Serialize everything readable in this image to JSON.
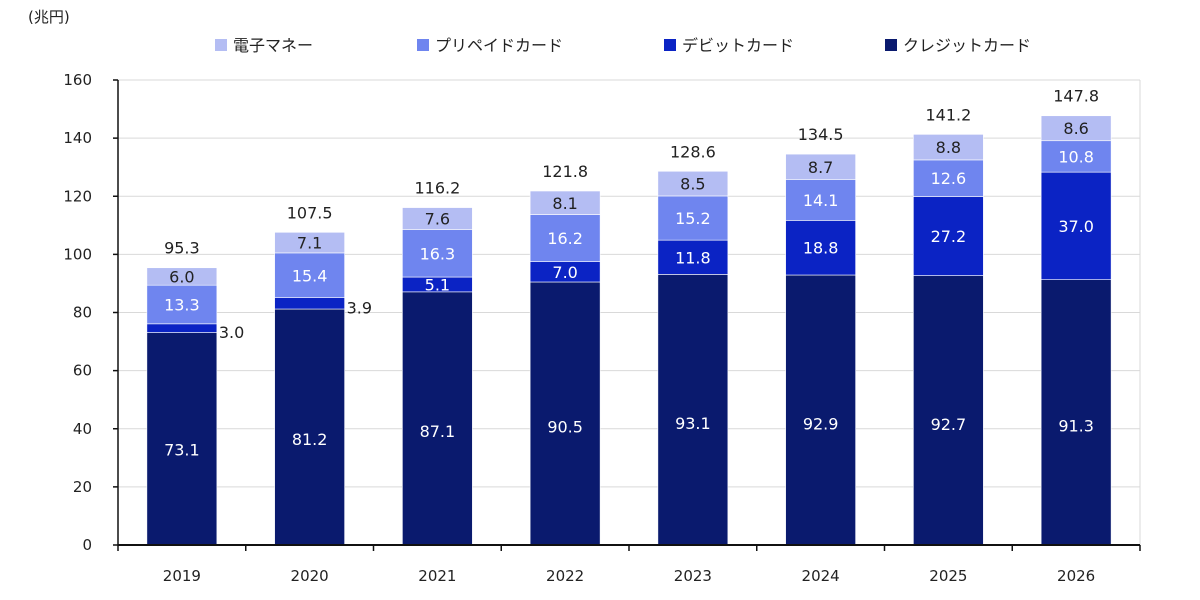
{
  "chart_data": {
    "type": "bar",
    "stacked": true,
    "unit_label": "(兆円)",
    "categories": [
      "2019",
      "2020",
      "2021",
      "2022",
      "2023",
      "2024",
      "2025",
      "2026"
    ],
    "series": [
      {
        "name": "クレジットカード",
        "color": "#0a1a6e",
        "label_color": "#ffffff",
        "values": [
          73.1,
          81.2,
          87.1,
          90.5,
          93.1,
          92.9,
          92.7,
          91.3
        ]
      },
      {
        "name": "デビットカード",
        "color": "#0b23c4",
        "label_color": "#ffffff",
        "values": [
          3.0,
          3.9,
          5.1,
          7.0,
          11.8,
          18.8,
          27.2,
          37.0
        ]
      },
      {
        "name": "プリペイドカード",
        "color": "#6f85ef",
        "label_color": "#ffffff",
        "values": [
          13.3,
          15.4,
          16.3,
          16.2,
          15.2,
          14.1,
          12.6,
          10.8
        ]
      },
      {
        "name": "電子マネー",
        "color": "#b4bdf3",
        "label_color": "#222222",
        "values": [
          6.0,
          7.1,
          7.6,
          8.1,
          8.5,
          8.7,
          8.8,
          8.6
        ]
      }
    ],
    "value_labels": {
      "クレジットカード": [
        "73.1",
        "81.2",
        "87.1",
        "90.5",
        "93.1",
        "92.9",
        "92.7",
        "91.3"
      ],
      "デビットカード": [
        "3.0",
        "3.9",
        "5.1",
        "7.0",
        "11.8",
        "18.8",
        "27.2",
        "37.0"
      ],
      "プリペイドカード": [
        "13.3",
        "15.4",
        "16.3",
        "16.2",
        "15.2",
        "14.1",
        "12.6",
        "10.8"
      ],
      "電子マネー": [
        "6.0",
        "7.1",
        "7.6",
        "8.1",
        "8.5",
        "8.7",
        "8.8",
        "8.6"
      ]
    },
    "totals": [
      "95.3",
      "107.5",
      "116.2",
      "121.8",
      "128.6",
      "134.5",
      "141.2",
      "147.8"
    ],
    "legend_order": [
      "電子マネー",
      "プリペイドカード",
      "デビットカード",
      "クレジットカード"
    ],
    "legend_position": "top",
    "ylim": [
      0,
      160
    ],
    "yticks": [
      "0",
      "20",
      "40",
      "60",
      "80",
      "100",
      "120",
      "140",
      "160"
    ],
    "grid": true
  }
}
